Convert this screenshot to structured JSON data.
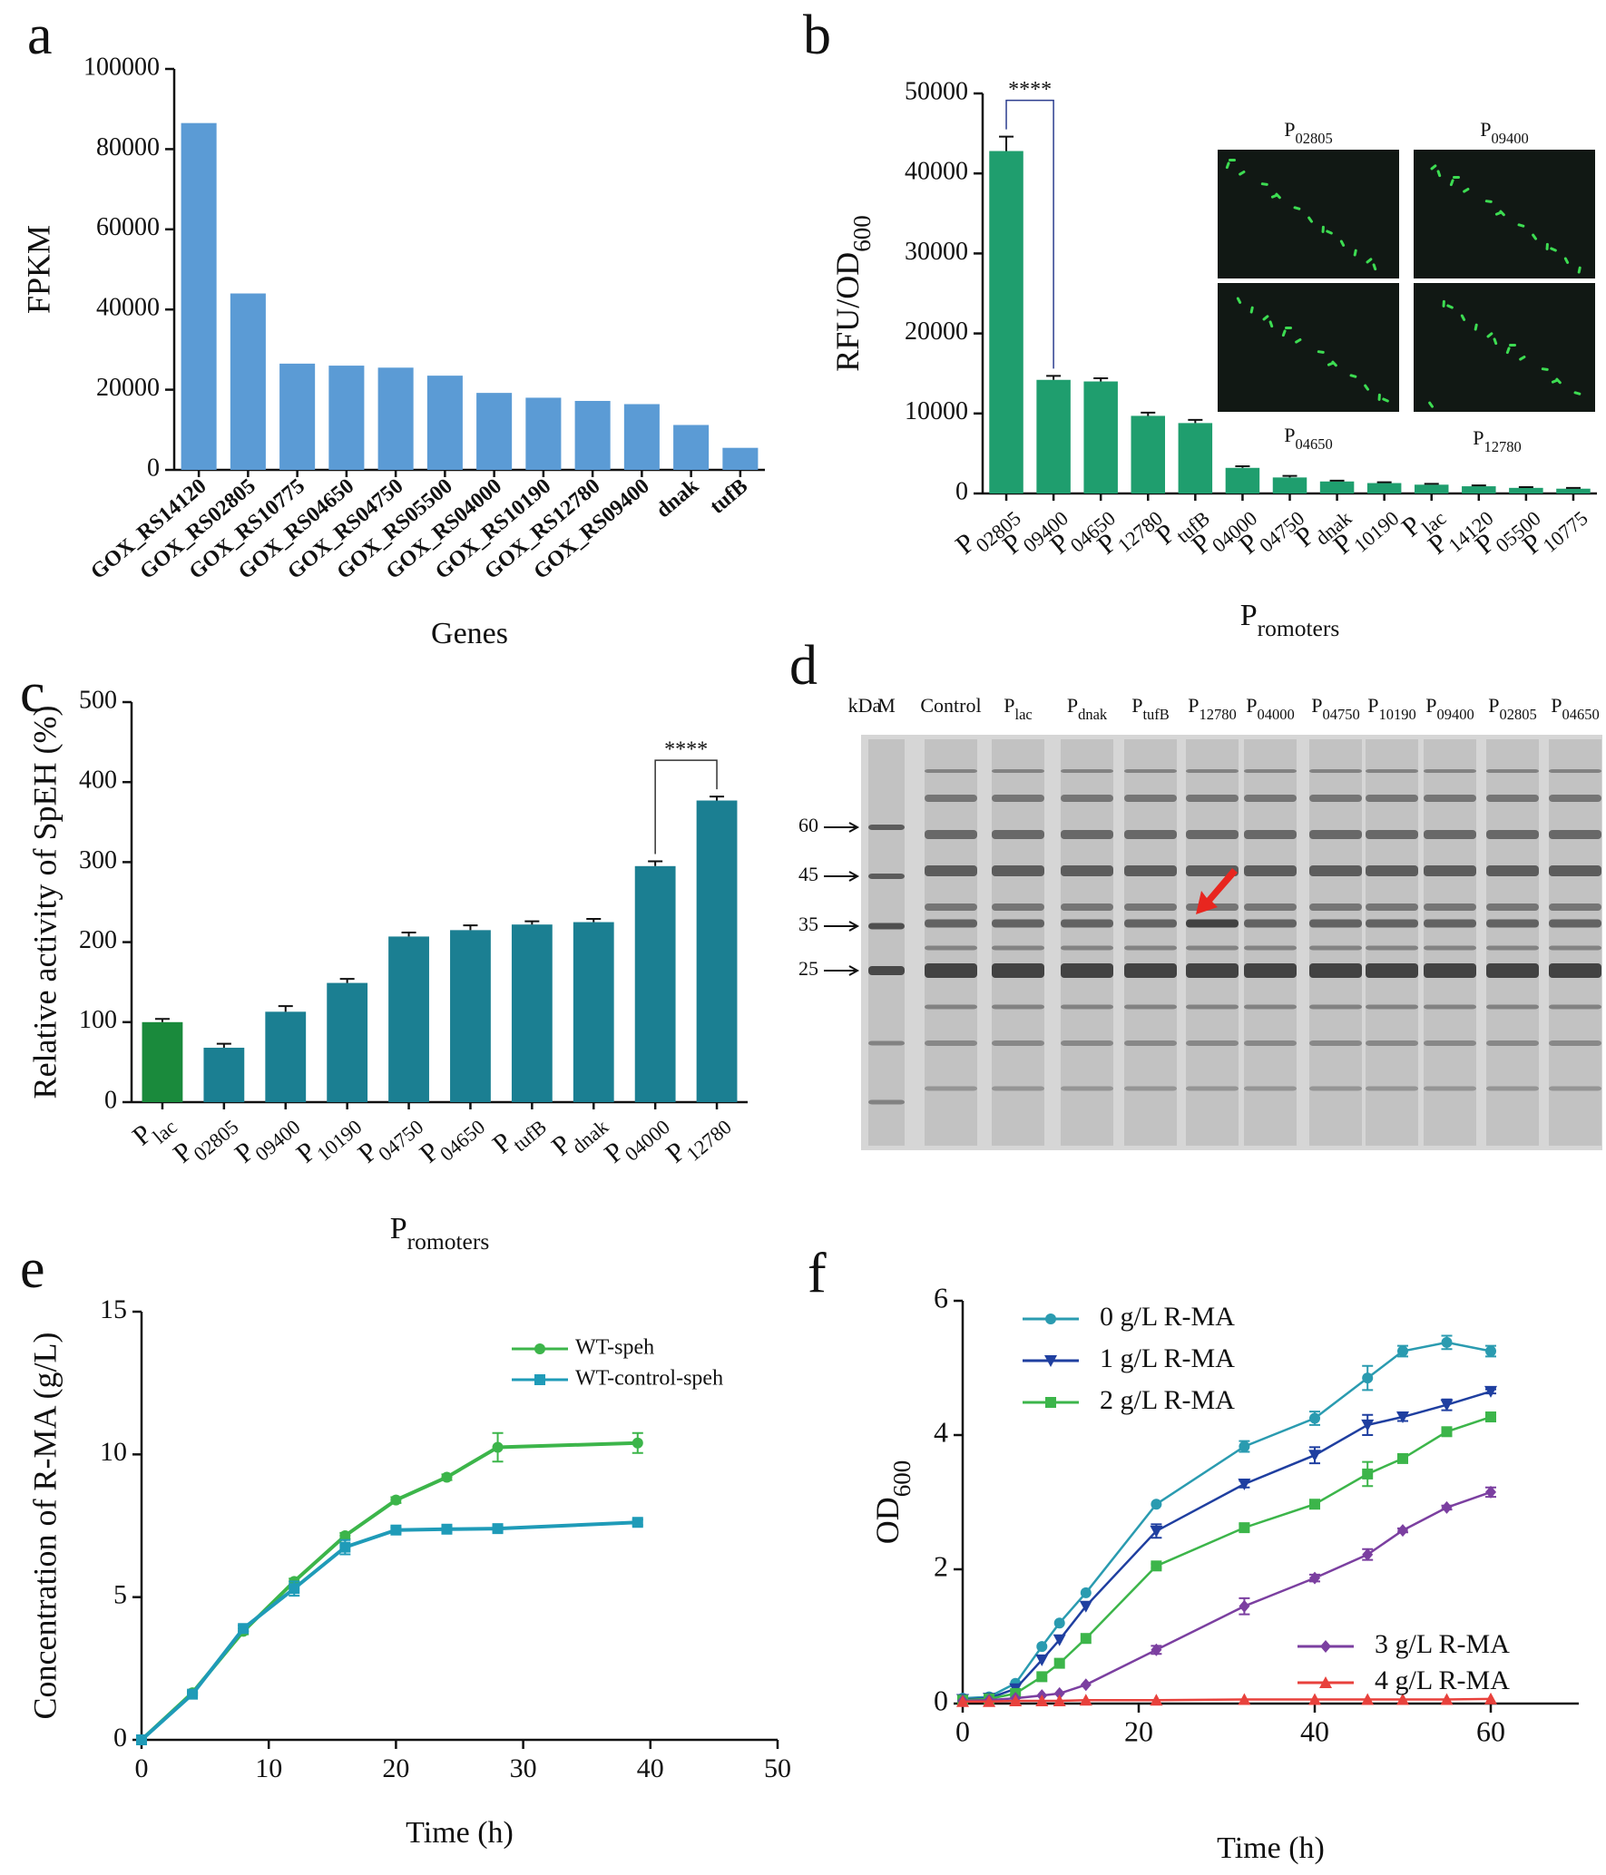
{
  "chart_data": [
    {
      "type": "bar",
      "label": "a",
      "xlabel": "Genes",
      "ylabel": "FPKM",
      "color": "#5b9bd5",
      "categories": [
        "GOX_RS14120",
        "GOX_RS02805",
        "GOX_RS10775",
        "GOX_RS04650",
        "GOX_RS04750",
        "GOX_RS05500",
        "GOX_RS04000",
        "GOX_RS10190",
        "GOX_RS12780",
        "GOX_RS09400",
        "dnak",
        "tufB"
      ],
      "values": [
        86500,
        44000,
        26500,
        26000,
        25500,
        23500,
        19200,
        18000,
        17200,
        16400,
        11200,
        5500
      ],
      "ylim": [
        0,
        100000
      ],
      "yticks": [
        0,
        20000,
        40000,
        60000,
        80000,
        100000
      ],
      "grid": false
    },
    {
      "type": "bar",
      "label": "b",
      "xlabel": "Promoters",
      "ylabel": "RFU/OD600",
      "color": "#1f9e6e",
      "annotation": "****",
      "categories": [
        "P02805",
        "P09400",
        "P04650",
        "P12780",
        "PtufB",
        "P04000",
        "P04750",
        "Pdnak",
        "P10190",
        "Plac",
        "P14120",
        "P05500",
        "P10775"
      ],
      "values": [
        42800,
        14200,
        14000,
        9700,
        8800,
        3200,
        2000,
        1500,
        1300,
        1100,
        900,
        700,
        600
      ],
      "errors": [
        1800,
        500,
        400,
        400,
        400,
        200,
        200,
        100,
        100,
        100,
        100,
        100,
        100
      ],
      "insets": [
        "P02805",
        "P09400",
        "P04650",
        "P12780"
      ],
      "ylim": [
        0,
        50000
      ],
      "yticks": [
        0,
        10000,
        20000,
        30000,
        40000,
        50000
      ],
      "grid": false
    },
    {
      "type": "bar",
      "label": "c",
      "xlabel": "Promoters",
      "ylabel": "Relative activity of SpEH (%)",
      "annotation": "****",
      "colors": [
        "#1a8a3c",
        "#1b7f92",
        "#1b7f92",
        "#1b7f92",
        "#1b7f92",
        "#1b7f92",
        "#1b7f92",
        "#1b7f92",
        "#1b7f92",
        "#1b7f92"
      ],
      "categories": [
        "Plac",
        "P02805",
        "P09400",
        "P10190",
        "P04750",
        "P04650",
        "PtufB",
        "Pdnak",
        "P04000",
        "P12780"
      ],
      "values": [
        100,
        68,
        113,
        149,
        207,
        215,
        222,
        225,
        295,
        377
      ],
      "errors": [
        4,
        5,
        7,
        5,
        5,
        6,
        4,
        4,
        6,
        5
      ],
      "ylim": [
        0,
        500
      ],
      "yticks": [
        0,
        100,
        200,
        300,
        400,
        500
      ],
      "grid": false
    },
    {
      "type": "line",
      "label": "e",
      "xlabel": "Time (h)",
      "ylabel": "Concentration of R-MA (g/L)",
      "legend": "upper right",
      "x": [
        0,
        4,
        8,
        12,
        16,
        20,
        24,
        28,
        39
      ],
      "series": [
        {
          "name": "WT-speh",
          "color": "#3cb54a",
          "marker": "circle",
          "values": [
            0,
            1.65,
            3.8,
            5.55,
            7.15,
            8.4,
            9.2,
            10.25,
            10.4
          ],
          "errors": [
            0,
            0.05,
            0.1,
            0.1,
            0.1,
            0.1,
            0.1,
            0.5,
            0.35
          ]
        },
        {
          "name": "WT-control-speh",
          "color": "#1f9bb8",
          "marker": "square",
          "values": [
            0,
            1.6,
            3.9,
            5.3,
            6.75,
            7.35,
            7.38,
            7.4,
            7.62
          ],
          "errors": [
            0,
            0.05,
            0.1,
            0.25,
            0.25,
            0.1,
            0.1,
            0.1,
            0.1
          ]
        }
      ],
      "xlim": [
        0,
        50
      ],
      "xticks": [
        0,
        10,
        20,
        30,
        40,
        50
      ],
      "ylim": [
        0,
        15
      ],
      "yticks": [
        0,
        5,
        10,
        15
      ],
      "grid": false
    },
    {
      "type": "line",
      "label": "f",
      "xlabel": "Time (h)",
      "ylabel": "OD600",
      "legend": "upper left",
      "x": [
        0,
        3,
        6,
        9,
        11,
        14,
        22,
        32,
        40,
        46,
        50,
        55,
        60
      ],
      "series": [
        {
          "name": "0 g/L R-MA",
          "color": "#2a9bb0",
          "marker": "circle",
          "values": [
            0.08,
            0.1,
            0.3,
            0.85,
            1.2,
            1.65,
            2.97,
            3.83,
            4.25,
            4.85,
            5.25,
            5.38,
            5.25
          ],
          "errors": [
            0,
            0,
            0,
            0,
            0,
            0,
            0,
            0.08,
            0.1,
            0.18,
            0.08,
            0.1,
            0.08
          ]
        },
        {
          "name": "1 g/L R-MA",
          "color": "#1f3fa0",
          "marker": "triangle-down",
          "values": [
            0.06,
            0.08,
            0.22,
            0.65,
            0.95,
            1.45,
            2.57,
            3.27,
            3.7,
            4.15,
            4.27,
            4.45,
            4.65
          ],
          "errors": [
            0,
            0,
            0,
            0,
            0,
            0,
            0.1,
            0.05,
            0.12,
            0.15,
            0.06,
            0.08,
            0.03
          ]
        },
        {
          "name": "2 g/L R-MA",
          "color": "#3cb54a",
          "marker": "square",
          "values": [
            0.05,
            0.07,
            0.15,
            0.4,
            0.6,
            0.97,
            2.05,
            2.62,
            2.97,
            3.42,
            3.65,
            4.05,
            4.27
          ],
          "errors": [
            0,
            0,
            0,
            0,
            0,
            0,
            0.03,
            0.05,
            0.04,
            0.18,
            0.04,
            0.04,
            0.06
          ]
        },
        {
          "name": "3 g/L R-MA",
          "color": "#7b3fa0",
          "marker": "diamond",
          "values": [
            0.04,
            0.05,
            0.08,
            0.12,
            0.15,
            0.28,
            0.8,
            1.45,
            1.87,
            2.22,
            2.58,
            2.92,
            3.15
          ],
          "errors": [
            0,
            0,
            0,
            0,
            0,
            0,
            0.06,
            0.12,
            0.05,
            0.08,
            0.03,
            0.03,
            0.07
          ]
        },
        {
          "name": "4 g/L R-MA",
          "color": "#e8413c",
          "marker": "triangle-up",
          "values": [
            0.03,
            0.03,
            0.04,
            0.04,
            0.04,
            0.05,
            0.05,
            0.06,
            0.06,
            0.06,
            0.06,
            0.06,
            0.07
          ],
          "errors": [
            0,
            0,
            0,
            0,
            0,
            0,
            0,
            0,
            0,
            0,
            0,
            0,
            0
          ]
        }
      ],
      "xlim": [
        0,
        70
      ],
      "xticks": [
        0,
        20,
        40,
        60
      ],
      "ylim": [
        0,
        6
      ],
      "yticks": [
        0,
        2,
        4,
        6
      ],
      "grid": false
    }
  ],
  "gel": {
    "label": "d",
    "unit": "kDa",
    "lanes": [
      "M",
      "Control",
      "Plac",
      "Pdnak",
      "PtufB",
      "P12780",
      "P04000",
      "P04750",
      "P10190",
      "P09400",
      "P02805",
      "P04650"
    ],
    "markers": [
      "60",
      "45",
      "35",
      "25"
    ]
  }
}
